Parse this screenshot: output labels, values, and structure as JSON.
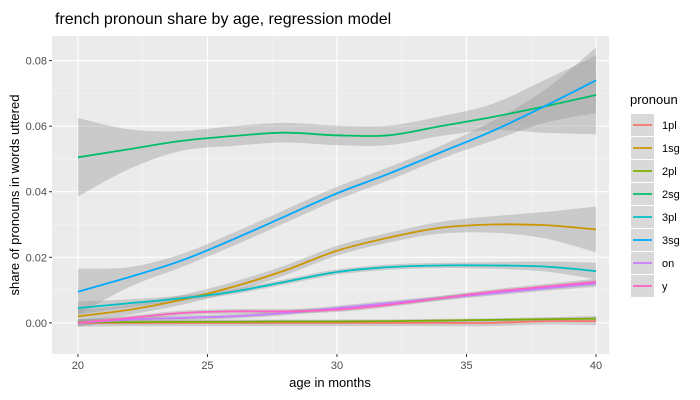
{
  "chart_data": {
    "type": "line",
    "title": "french pronoun share  by age, regression model",
    "xlabel": "age in months",
    "ylabel": "share of pronouns in words uttered",
    "xlim": [
      19.0,
      40.5
    ],
    "ylim": [
      -0.0095,
      0.0875
    ],
    "x_ticks": [
      20,
      25,
      30,
      35,
      40
    ],
    "y_ticks": [
      0.0,
      0.02,
      0.04,
      0.06,
      0.08
    ],
    "x_tick_labels": [
      "20",
      "25",
      "30",
      "35",
      "40"
    ],
    "y_tick_labels": [
      "0.00",
      "0.02",
      "0.04",
      "0.06",
      "0.08"
    ],
    "grid": true,
    "legend": {
      "title": "pronoun",
      "position": "right"
    },
    "x": [
      20,
      22,
      24,
      26,
      28,
      30,
      32,
      34,
      36,
      38,
      40
    ],
    "series": [
      {
        "name": "1pl",
        "color": "#F8766D",
        "values": [
          0.0,
          0.0,
          0.0,
          0.0,
          0.0,
          0.0,
          0.0,
          0.0,
          0.0,
          0.0005,
          0.0005
        ],
        "ci": [
          0.0012,
          0.001,
          0.001,
          0.001,
          0.001,
          0.001,
          0.001,
          0.001,
          0.001,
          0.001,
          0.0012
        ]
      },
      {
        "name": "1sg",
        "color": "#CD9600",
        "values": [
          0.002,
          0.004,
          0.007,
          0.011,
          0.016,
          0.022,
          0.026,
          0.029,
          0.03,
          0.0298,
          0.0285
        ],
        "ci": [
          0.002,
          0.0015,
          0.0015,
          0.0015,
          0.0015,
          0.0015,
          0.0015,
          0.0018,
          0.0025,
          0.004,
          0.007
        ]
      },
      {
        "name": "2pl",
        "color": "#7CAE00",
        "values": [
          0.0002,
          0.0002,
          0.0003,
          0.0003,
          0.0004,
          0.0004,
          0.0005,
          0.0007,
          0.0009,
          0.0011,
          0.0013
        ],
        "ci": [
          0.0005,
          0.0005,
          0.0005,
          0.0005,
          0.0005,
          0.0005,
          0.0005,
          0.0005,
          0.0005,
          0.0006,
          0.0008
        ]
      },
      {
        "name": "2sg",
        "color": "#00BE67",
        "values": [
          0.0505,
          0.053,
          0.0555,
          0.057,
          0.058,
          0.0572,
          0.0572,
          0.06,
          0.0628,
          0.066,
          0.0695
        ],
        "ci": [
          0.012,
          0.006,
          0.003,
          0.003,
          0.003,
          0.003,
          0.003,
          0.003,
          0.004,
          0.008,
          0.012
        ]
      },
      {
        "name": "3pl",
        "color": "#00BFC4",
        "values": [
          0.0045,
          0.006,
          0.0075,
          0.0095,
          0.0125,
          0.0155,
          0.017,
          0.0175,
          0.0175,
          0.0172,
          0.0158
        ],
        "ci": [
          0.002,
          0.0012,
          0.0008,
          0.0008,
          0.0008,
          0.0008,
          0.0008,
          0.0008,
          0.001,
          0.0015,
          0.0025
        ]
      },
      {
        "name": "3sg",
        "color": "#00A9FF",
        "values": [
          0.0095,
          0.014,
          0.019,
          0.0255,
          0.0325,
          0.0395,
          0.0455,
          0.052,
          0.0585,
          0.066,
          0.074
        ],
        "ci": [
          0.007,
          0.003,
          0.002,
          0.002,
          0.002,
          0.002,
          0.002,
          0.002,
          0.003,
          0.005,
          0.01
        ]
      },
      {
        "name": "on",
        "color": "#C77CFF",
        "values": [
          0.0,
          0.001,
          0.0015,
          0.002,
          0.003,
          0.0045,
          0.006,
          0.0075,
          0.009,
          0.0105,
          0.012
        ],
        "ci": [
          0.001,
          0.0007,
          0.0007,
          0.0007,
          0.0007,
          0.0007,
          0.0007,
          0.0007,
          0.0007,
          0.0008,
          0.001
        ]
      },
      {
        "name": "y",
        "color": "#FF61C3",
        "values": [
          0.0,
          0.0015,
          0.003,
          0.0035,
          0.0035,
          0.004,
          0.0055,
          0.0075,
          0.0095,
          0.011,
          0.0125
        ],
        "ci": [
          0.001,
          0.0007,
          0.0007,
          0.0007,
          0.0007,
          0.0007,
          0.0007,
          0.0007,
          0.0007,
          0.0008,
          0.001
        ]
      }
    ]
  }
}
